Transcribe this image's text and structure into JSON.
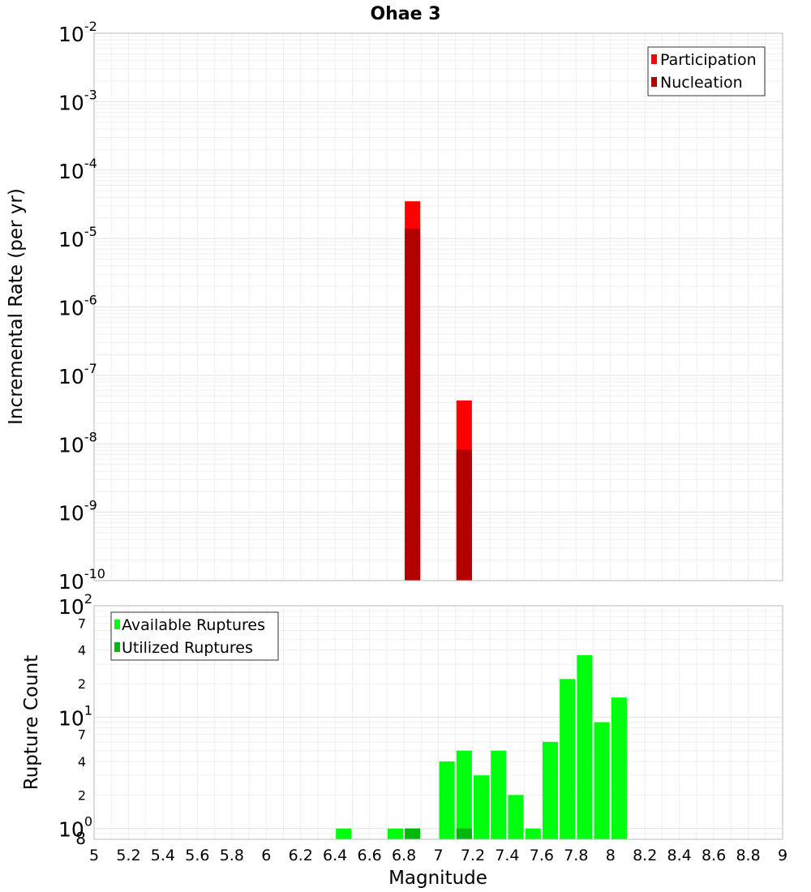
{
  "chart_data": [
    {
      "type": "bar",
      "title": "Ohae 3",
      "xlabel": "",
      "ylabel": "Incremental Rate (per yr)",
      "x_range": [
        5,
        9
      ],
      "y_scale": "log",
      "y_range": [
        1e-10,
        0.01
      ],
      "y_ticks": [
        {
          "base": "10",
          "exp": "-10"
        },
        {
          "base": "10",
          "exp": "-9"
        },
        {
          "base": "10",
          "exp": "-8"
        },
        {
          "base": "10",
          "exp": "-7"
        },
        {
          "base": "10",
          "exp": "-6"
        },
        {
          "base": "10",
          "exp": "-5"
        },
        {
          "base": "10",
          "exp": "-4"
        },
        {
          "base": "10",
          "exp": "-3"
        },
        {
          "base": "10",
          "exp": "-2"
        }
      ],
      "grid": true,
      "legend_position": "top-right",
      "series": [
        {
          "name": "Participation",
          "color": "#ff0000",
          "x": [
            6.85,
            7.15
          ],
          "values": [
            3.5e-05,
            4.3e-08
          ]
        },
        {
          "name": "Nucleation",
          "color": "#b30000",
          "x": [
            6.85,
            7.15
          ],
          "values": [
            1.4e-05,
            8.2e-09
          ]
        }
      ]
    },
    {
      "type": "bar",
      "title": "",
      "xlabel": "Magnitude",
      "ylabel": "Rupture Count",
      "x_range": [
        5,
        9
      ],
      "x_ticks": [
        "5",
        "5.2",
        "5.4",
        "5.6",
        "5.8",
        "6",
        "6.2",
        "6.4",
        "6.6",
        "6.8",
        "7",
        "7.2",
        "7.4",
        "7.6",
        "7.8",
        "8",
        "8.2",
        "8.4",
        "8.6",
        "8.8",
        "9"
      ],
      "y_scale": "log",
      "y_range": [
        0.8,
        100
      ],
      "y_major_ticks": [
        {
          "base": "10",
          "exp": "0"
        },
        {
          "base": "10",
          "exp": "1"
        },
        {
          "base": "10",
          "exp": "2"
        }
      ],
      "y_minor_labels": [
        {
          "label": "8",
          "value": 0.8
        },
        {
          "label": "2",
          "value": 2
        },
        {
          "label": "4",
          "value": 4
        },
        {
          "label": "7",
          "value": 7
        },
        {
          "label": "2",
          "value": 20
        },
        {
          "label": "4",
          "value": 40
        },
        {
          "label": "7",
          "value": 70
        }
      ],
      "grid": true,
      "legend_position": "top-left",
      "series": [
        {
          "name": "Available Ruptures",
          "color": "#00ff0f",
          "x": [
            6.45,
            6.75,
            6.85,
            7.05,
            7.15,
            7.25,
            7.35,
            7.45,
            7.55,
            7.65,
            7.75,
            7.85,
            7.95,
            8.05
          ],
          "values": [
            1,
            1,
            1,
            4,
            5,
            3,
            5,
            2,
            1,
            6,
            22,
            36,
            9,
            15
          ]
        },
        {
          "name": "Utilized Ruptures",
          "color": "#00b70b",
          "x": [
            6.85,
            7.15
          ],
          "values": [
            1,
            1
          ]
        }
      ]
    }
  ]
}
